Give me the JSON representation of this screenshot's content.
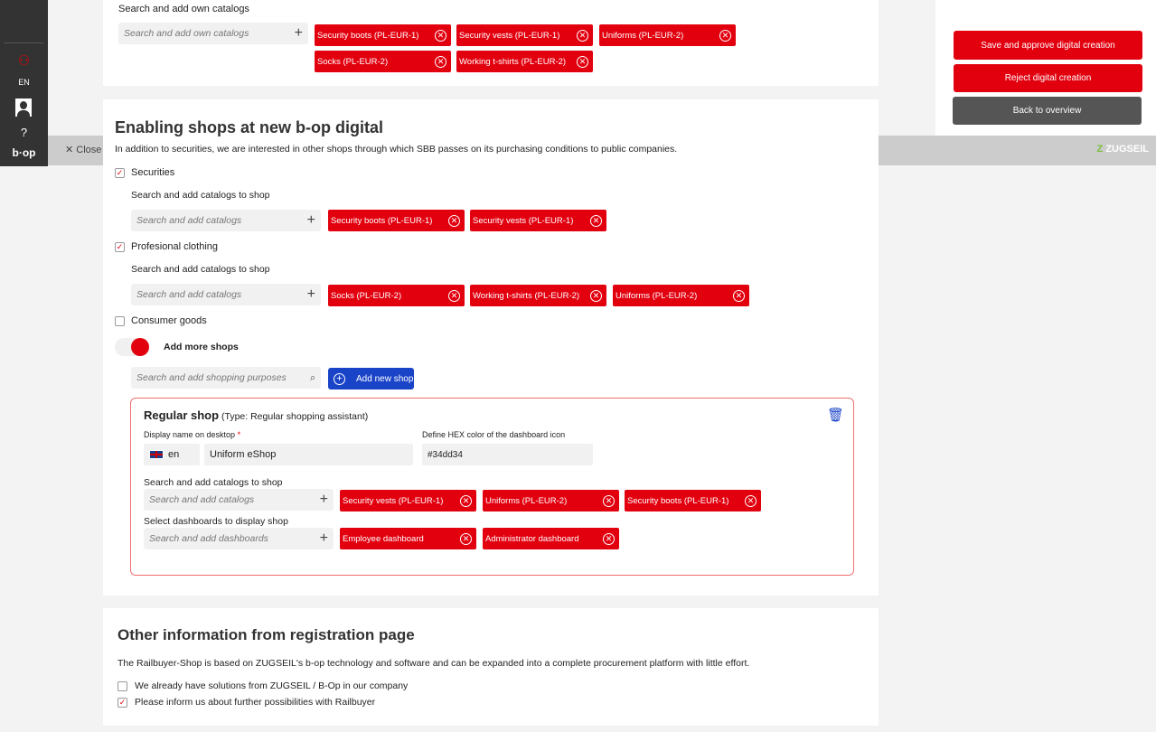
{
  "sidebar": {
    "language": "EN",
    "logo": "b·op",
    "icons": [
      "users-icon",
      "avatar-icon",
      "help-icon"
    ]
  },
  "topbar": {
    "close_label": "Close",
    "brand": "ZUGSEIL"
  },
  "actions": {
    "save": "Save and approve digital creation",
    "reject": "Reject digital creation",
    "back": "Back to overview"
  },
  "own_catalogs": {
    "label": "Search and add own catalogs",
    "placeholder": "Search and add own catalogs",
    "tags": [
      "Security boots (PL-EUR-1)",
      "Security vests (PL-EUR-1)",
      "Uniforms (PL-EUR-2)",
      "Socks (PL-EUR-2)",
      "Working t-shirts (PL-EUR-2)"
    ]
  },
  "shops": {
    "title": "Enabling shops at new b-op digital",
    "intro": "In addition to securities, we are interested in other shops through which SBB passes on its purchasing conditions to public companies.",
    "items": [
      {
        "label": "Securities",
        "checked": true,
        "sub_label": "Search and add catalogs to shop",
        "placeholder": "Search and add catalogs",
        "tags": [
          "Security boots (PL-EUR-1)",
          "Security vests (PL-EUR-1)"
        ]
      },
      {
        "label": "Profesional clothing",
        "checked": true,
        "sub_label": "Search and add catalogs to shop",
        "placeholder": "Search and add catalogs",
        "tags": [
          "Socks (PL-EUR-2)",
          "Working t-shirts (PL-EUR-2)",
          "Uniforms (PL-EUR-2)"
        ]
      },
      {
        "label": "Consumer goods",
        "checked": false
      }
    ],
    "add_more": {
      "label": "Add more shops",
      "toggle_on": true,
      "placeholder": "Search and add shopping purposes",
      "button": "Add new shop"
    },
    "regular_shop": {
      "title": "Regular shop",
      "type": "(Type: Regular shopping assistant)",
      "display_label": "Display name on desktop",
      "required": "*",
      "lang": "en",
      "display_name": "Uniform eShop",
      "hex_label": "Define HEX color of the dashboard icon",
      "hex": "#34dd34",
      "catalog_label": "Search and add catalogs to shop",
      "catalog_placeholder": "Search and add catalogs",
      "catalog_tags": [
        "Security vests (PL-EUR-1)",
        "Uniforms (PL-EUR-2)",
        "Security boots (PL-EUR-1)"
      ],
      "dash_label": "Select dashboards to display shop",
      "dash_placeholder": "Search and add dashboards",
      "dash_tags": [
        "Employee dashboard",
        "Administrator dashboard"
      ]
    }
  },
  "other": {
    "title": "Other information from registration page",
    "text": "The Railbuyer-Shop is based on ZUGSEIL's b-op technology and software and can be expanded into a complete procurement platform with little effort.",
    "options": [
      {
        "label": "We already have solutions from ZUGSEIL / B-Op in our company",
        "checked": false
      },
      {
        "label": "Please inform us about further possibilities with Railbuyer",
        "checked": true
      }
    ]
  },
  "colors": {
    "red": "#e2000f",
    "blue": "#1a44c8",
    "dark": "#333333"
  }
}
